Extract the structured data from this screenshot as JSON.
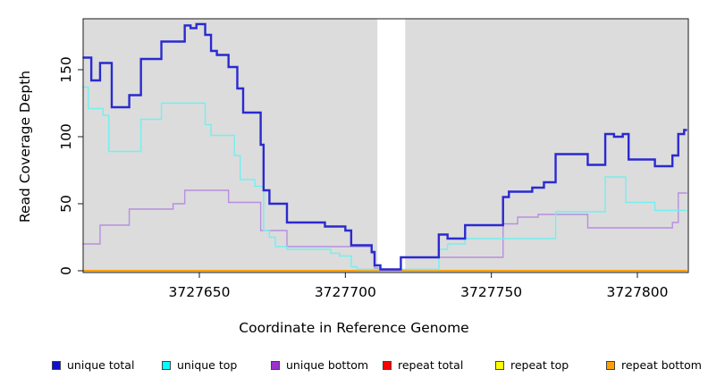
{
  "chart_data": {
    "type": "line",
    "subtype": "step-coverage",
    "title": "",
    "xlabel": "Coordinate in Reference Genome",
    "ylabel": "Read Coverage Depth",
    "xlim": [
      3727610,
      3727817
    ],
    "ylim": [
      0,
      188
    ],
    "x_ticks": [
      "3727650",
      "3727700",
      "3727750",
      "3727800"
    ],
    "x_tick_values": [
      3727650,
      3727700,
      3727750,
      3727800
    ],
    "y_ticks": [
      "0",
      "50",
      "100",
      "150"
    ],
    "y_tick_values": [
      0,
      50,
      100,
      150
    ],
    "grid": false,
    "plot_background": "#dcdcdc",
    "page_background": "#ffffff",
    "mask_region": {
      "from": 3727711,
      "to": 3727720.5,
      "color": "#ffffff"
    },
    "legend_position": "bottom",
    "series": [
      {
        "name": "unique total",
        "color": "#2a2ad0",
        "legend_color": "#0f0fd6",
        "width": 2.4,
        "steps": [
          [
            3727610,
            159
          ],
          [
            3727613,
            142
          ],
          [
            3727616,
            155
          ],
          [
            3727620,
            122
          ],
          [
            3727626,
            131
          ],
          [
            3727630,
            158
          ],
          [
            3727637,
            171
          ],
          [
            3727645,
            183
          ],
          [
            3727647,
            181
          ],
          [
            3727649,
            184
          ],
          [
            3727652,
            176
          ],
          [
            3727654,
            164
          ],
          [
            3727656,
            161
          ],
          [
            3727660,
            152
          ],
          [
            3727663,
            136
          ],
          [
            3727665,
            118
          ],
          [
            3727671,
            94
          ],
          [
            3727672,
            60
          ],
          [
            3727674,
            50
          ],
          [
            3727680,
            36
          ],
          [
            3727693,
            33
          ],
          [
            3727700,
            30
          ],
          [
            3727702,
            19
          ],
          [
            3727709,
            14
          ],
          [
            3727710,
            4
          ],
          [
            3727712,
            1
          ],
          [
            3727719,
            10
          ],
          [
            3727732,
            27
          ],
          [
            3727735,
            24
          ],
          [
            3727741,
            34
          ],
          [
            3727754,
            55
          ],
          [
            3727756,
            59
          ],
          [
            3727764,
            62
          ],
          [
            3727768,
            66
          ],
          [
            3727772,
            87
          ],
          [
            3727783,
            79
          ],
          [
            3727789,
            102
          ],
          [
            3727792,
            100
          ],
          [
            3727795,
            102
          ],
          [
            3727797,
            83
          ],
          [
            3727806,
            78
          ],
          [
            3727812,
            86
          ],
          [
            3727814,
            102
          ],
          [
            3727816,
            105
          ]
        ]
      },
      {
        "name": "unique top",
        "color": "#74efef",
        "legend_color": "#00ffff",
        "width": 1.4,
        "steps": [
          [
            3727610,
            137
          ],
          [
            3727612,
            121
          ],
          [
            3727617,
            116
          ],
          [
            3727619,
            89
          ],
          [
            3727630,
            113
          ],
          [
            3727637,
            125
          ],
          [
            3727652,
            109
          ],
          [
            3727654,
            101
          ],
          [
            3727662,
            86
          ],
          [
            3727664,
            68
          ],
          [
            3727669,
            63
          ],
          [
            3727672,
            30
          ],
          [
            3727674,
            25
          ],
          [
            3727676,
            18
          ],
          [
            3727680,
            16
          ],
          [
            3727695,
            13
          ],
          [
            3727698,
            11
          ],
          [
            3727702,
            3
          ],
          [
            3727704,
            1
          ],
          [
            3727732,
            16
          ],
          [
            3727735,
            20
          ],
          [
            3727741,
            24
          ],
          [
            3727772,
            44
          ],
          [
            3727789,
            70
          ],
          [
            3727796,
            51
          ],
          [
            3727806,
            45
          ]
        ]
      },
      {
        "name": "unique bottom",
        "color": "#b78fdf",
        "legend_color": "#9932cc",
        "width": 1.4,
        "steps": [
          [
            3727610,
            20
          ],
          [
            3727616,
            34
          ],
          [
            3727626,
            46
          ],
          [
            3727641,
            50
          ],
          [
            3727645,
            60
          ],
          [
            3727660,
            51
          ],
          [
            3727671,
            30
          ],
          [
            3727680,
            18
          ],
          [
            3727709,
            13
          ],
          [
            3727710,
            2
          ],
          [
            3727712,
            0
          ],
          [
            3727719,
            10
          ],
          [
            3727754,
            35
          ],
          [
            3727759,
            40
          ],
          [
            3727766,
            42
          ],
          [
            3727783,
            32
          ],
          [
            3727812,
            36
          ],
          [
            3727814,
            58
          ]
        ]
      },
      {
        "name": "repeat total",
        "color": "#e00000",
        "legend_color": "#ff0000",
        "width": 1.2,
        "steps": [
          [
            3727610,
            0
          ]
        ]
      },
      {
        "name": "repeat top",
        "color": "#ffff00",
        "legend_color": "#ffff00",
        "width": 1.2,
        "steps": [
          [
            3727610,
            0
          ]
        ]
      },
      {
        "name": "repeat bottom",
        "color": "#ff9d00",
        "legend_color": "#ffa000",
        "width": 1.7,
        "steps": [
          [
            3727610,
            0
          ]
        ]
      }
    ]
  }
}
